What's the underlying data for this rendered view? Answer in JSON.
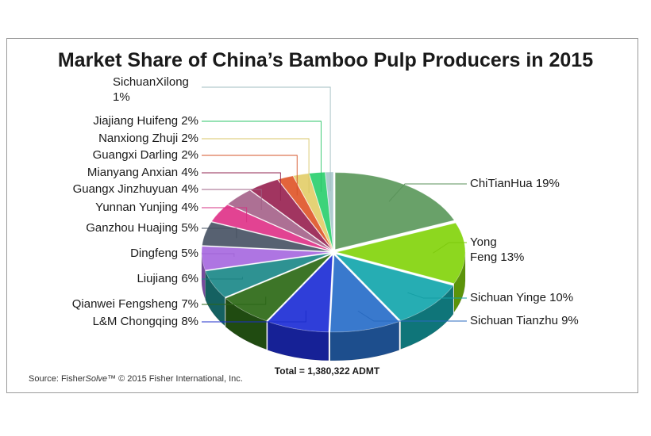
{
  "chart_data": {
    "type": "pie",
    "title": "Market Share of China’s Bamboo Pulp Producers in 2015",
    "unit": "%",
    "slices": [
      {
        "name": "ChiTianHua",
        "value": 19,
        "label": "ChiTianHua 19%",
        "color": "#5e9a5e"
      },
      {
        "name": "Yong Feng",
        "value": 13,
        "label_lines": [
          "Yong",
          "Feng 13%"
        ],
        "color": "#84d40e"
      },
      {
        "name": "Sichuan Yinge",
        "value": 10,
        "label": "Sichuan Yinge 10%",
        "color": "#16a7ad"
      },
      {
        "name": "Sichuan Tianzhu",
        "value": 9,
        "label": "Sichuan Tianzhu 9%",
        "color": "#2a6fc9"
      },
      {
        "name": "L&M Chongqing",
        "value": 8,
        "label": "L&M Chongqing 8%",
        "color": "#1f2fd6"
      },
      {
        "name": "Qianwei Fengsheng",
        "value": 7,
        "label": "Qianwei Fengsheng 7%",
        "color": "#2e6b18"
      },
      {
        "name": "Liujiang",
        "value": 6,
        "label": "Liujiang 6%",
        "color": "#1e8a8a"
      },
      {
        "name": "Dingfeng",
        "value": 5,
        "label": "Dingfeng 5%",
        "color": "#a86ae0"
      },
      {
        "name": "Ganzhou Huajing",
        "value": 5,
        "label": "Ganzhou Huajing 5%",
        "color": "#4a5566"
      },
      {
        "name": "Yunnan Yunjing",
        "value": 4,
        "label": "Yunnan Yunjing 4%",
        "color": "#e0358a"
      },
      {
        "name": "Guangx Jinzhuyuan",
        "value": 4,
        "label": "Guangx Jinzhuyuan 4%",
        "color": "#a7658c"
      },
      {
        "name": "Mianyang Anxian",
        "value": 4,
        "label": "Mianyang Anxian 4%",
        "color": "#9a2654"
      },
      {
        "name": "Guangxi Darling",
        "value": 2,
        "label": "Guangxi Darling 2%",
        "color": "#e0582c"
      },
      {
        "name": "Nanxiong Zhuji",
        "value": 2,
        "label": "Nanxiong Zhuji 2%",
        "color": "#e3cf6c"
      },
      {
        "name": "Jiajiang Huifeng",
        "value": 2,
        "label": "Jiajiang Huifeng 2%",
        "color": "#2ed070"
      },
      {
        "name": "SichuanXilong",
        "value": 1,
        "label_lines": [
          "SichuanXilong",
          "1%"
        ],
        "color": "#a9c8cc"
      }
    ],
    "total_label": "Total = 1,380,322 ADMT",
    "legend": "none"
  },
  "source": {
    "prefix": "Source: Fisher",
    "italic": "Solve",
    "suffix": "™ © 2015 Fisher International, Inc."
  }
}
